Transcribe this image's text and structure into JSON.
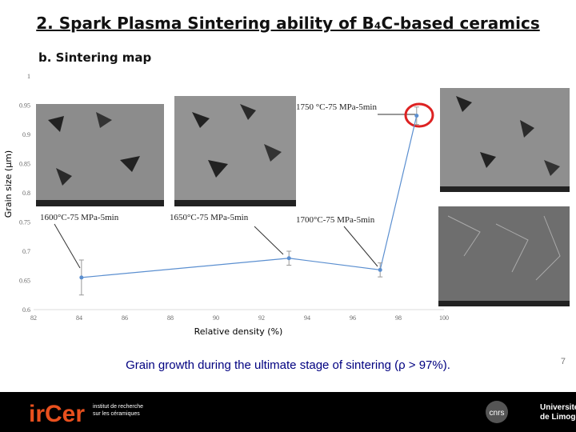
{
  "slide": {
    "title": "2. Spark Plasma Sintering ability of B₄C-based ceramics",
    "subtitle": "b. Sintering map",
    "caption": "Grain growth during the ultimate stage of sintering (ρ > 97%).",
    "page_number": "7"
  },
  "footer": {
    "logo": "irCer",
    "institute_line1": "institut de recherche",
    "institute_line2": "sur les céramiques",
    "cnrs": "cnrs",
    "university_line1": "Université",
    "university_line2": "de Limoges"
  },
  "chart_data": {
    "type": "line",
    "x_label": "Relative density (%)",
    "y_label": "Grain size (µm)",
    "x": [
      84.1,
      93.2,
      97.2,
      98.8
    ],
    "values": [
      0.655,
      0.688,
      0.668,
      0.932
    ],
    "errors": [
      0.03,
      0.012,
      0.012,
      0.015
    ],
    "color": "#5b8fd0",
    "xlim": [
      82,
      100
    ],
    "xticks": [
      82,
      84,
      86,
      88,
      90,
      92,
      94,
      96,
      98,
      100
    ],
    "ylim": [
      0.6,
      1
    ],
    "yticks": [
      0.6,
      0.65,
      0.7,
      0.75,
      0.8,
      0.85,
      0.9,
      0.95,
      1
    ],
    "annotations": [
      "1600°C-75  MPa-5min",
      "1650°C-75  MPa-5min",
      "1700°C-75  MPa-5min",
      "1750 °C-75  MPa-5min"
    ]
  }
}
